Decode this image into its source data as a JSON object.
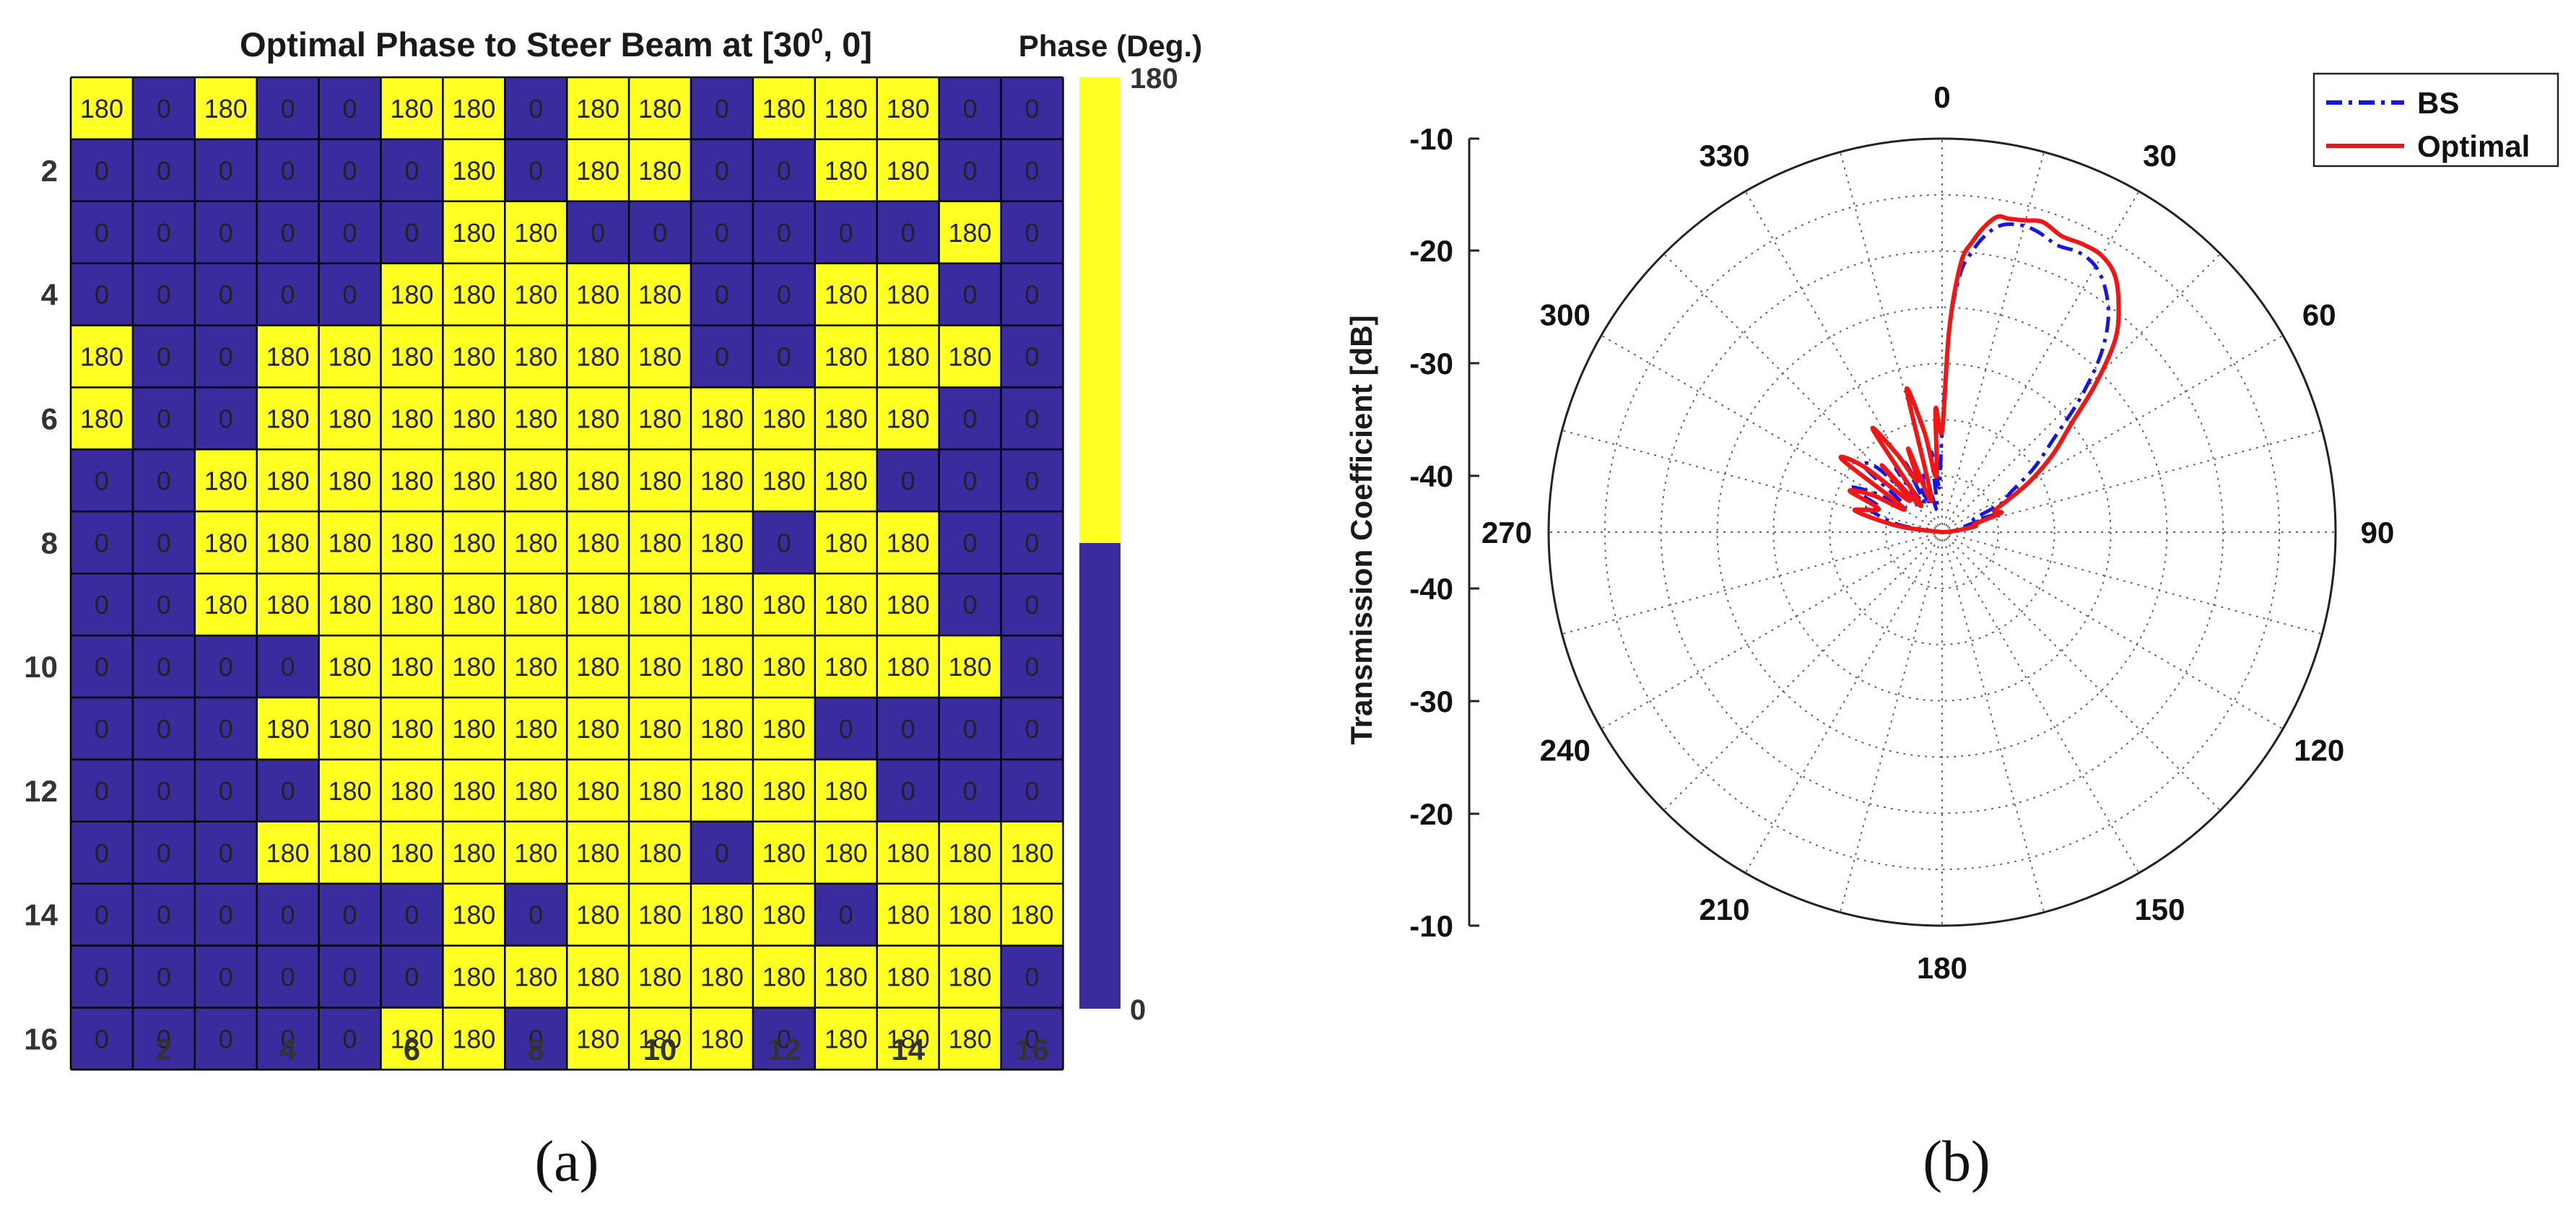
{
  "chart_data": [
    {
      "type": "heatmap",
      "title_prefix": "Optimal Phase to Steer Beam at [30",
      "title_sup": "0",
      "title_suffix": ", 0]",
      "colorbar_title": "Phase (Deg.)",
      "colorbar_ticks": [
        "180",
        "0"
      ],
      "x_ticks": [
        "2",
        "4",
        "6",
        "8",
        "10",
        "12",
        "14",
        "16"
      ],
      "y_ticks": [
        "2",
        "4",
        "6",
        "8",
        "10",
        "12",
        "14",
        "16"
      ],
      "colors": {
        "low": "#3a2b9e",
        "high": "#ffff22"
      },
      "caption": "(a)",
      "matrix": [
        [
          180,
          0,
          180,
          0,
          0,
          180,
          180,
          0,
          180,
          180,
          0,
          180,
          180,
          180,
          0,
          0
        ],
        [
          0,
          0,
          0,
          0,
          0,
          0,
          180,
          0,
          180,
          180,
          0,
          0,
          180,
          180,
          0,
          0
        ],
        [
          0,
          0,
          0,
          0,
          0,
          0,
          180,
          180,
          0,
          0,
          0,
          0,
          0,
          0,
          180,
          0
        ],
        [
          0,
          0,
          0,
          0,
          0,
          180,
          180,
          180,
          180,
          180,
          0,
          0,
          180,
          180,
          0,
          0
        ],
        [
          180,
          0,
          0,
          180,
          180,
          180,
          180,
          180,
          180,
          180,
          0,
          0,
          180,
          180,
          180,
          0
        ],
        [
          180,
          0,
          0,
          180,
          180,
          180,
          180,
          180,
          180,
          180,
          180,
          180,
          180,
          180,
          0,
          0
        ],
        [
          0,
          0,
          180,
          180,
          180,
          180,
          180,
          180,
          180,
          180,
          180,
          180,
          180,
          0,
          0,
          0
        ],
        [
          0,
          0,
          180,
          180,
          180,
          180,
          180,
          180,
          180,
          180,
          180,
          0,
          180,
          180,
          0,
          0
        ],
        [
          0,
          0,
          180,
          180,
          180,
          180,
          180,
          180,
          180,
          180,
          180,
          180,
          180,
          180,
          0,
          0
        ],
        [
          0,
          0,
          0,
          0,
          180,
          180,
          180,
          180,
          180,
          180,
          180,
          180,
          180,
          180,
          180,
          0
        ],
        [
          0,
          0,
          0,
          180,
          180,
          180,
          180,
          180,
          180,
          180,
          180,
          180,
          0,
          0,
          0,
          0
        ],
        [
          0,
          0,
          0,
          0,
          180,
          180,
          180,
          180,
          180,
          180,
          180,
          180,
          180,
          0,
          0,
          0
        ],
        [
          0,
          0,
          0,
          180,
          180,
          180,
          180,
          180,
          180,
          180,
          0,
          180,
          180,
          180,
          180,
          180
        ],
        [
          0,
          0,
          0,
          0,
          0,
          0,
          180,
          0,
          180,
          180,
          180,
          180,
          0,
          180,
          180,
          180
        ],
        [
          0,
          0,
          0,
          0,
          0,
          0,
          180,
          180,
          180,
          180,
          180,
          180,
          180,
          180,
          180,
          0
        ],
        [
          0,
          0,
          0,
          0,
          0,
          180,
          180,
          0,
          180,
          180,
          180,
          0,
          180,
          180,
          180,
          0
        ]
      ]
    },
    {
      "type": "polar",
      "ylabel": "Transmission Coefficient [dB]",
      "r_ticks": [
        "-10",
        "-20",
        "-30",
        "-40",
        "-40",
        "-30",
        "-20",
        "-10"
      ],
      "angle_labels": [
        "0",
        "30",
        "60",
        "90",
        "120",
        "150",
        "180",
        "210",
        "240",
        "270",
        "300",
        "330"
      ],
      "r_range_db": [
        -45,
        -10
      ],
      "caption": "(b)",
      "series": [
        {
          "name": "BS",
          "color": "#1515e6",
          "style": "dash-dot",
          "angles_deg": [
            -90,
            -80,
            -72,
            -68,
            -64,
            -60,
            -55,
            -50,
            -45,
            -40,
            -36,
            -32,
            -28,
            -24,
            -20,
            -16,
            -12,
            -8,
            -6,
            -4,
            -2,
            0,
            2,
            4,
            6,
            8,
            10,
            12,
            15,
            18,
            22,
            26,
            30,
            34,
            38,
            42,
            46,
            50,
            55,
            60,
            64,
            68,
            72,
            76,
            80,
            85,
            90
          ],
          "values_db": [
            -45,
            -41,
            -38,
            -39,
            -36,
            -38,
            -41,
            -36,
            -37,
            -42,
            -38,
            -42,
            -38,
            -42,
            -40,
            -40,
            -43,
            -38,
            -39,
            -41,
            -40,
            -36,
            -27,
            -22,
            -20,
            -18.5,
            -17.5,
            -17,
            -16.8,
            -17,
            -17.5,
            -17.3,
            -17.7,
            -19,
            -21,
            -24,
            -28,
            -32,
            -35,
            -38,
            -39,
            -42,
            -40,
            -43,
            -42,
            -44,
            -45
          ]
        },
        {
          "name": "Optimal",
          "color": "#f01616",
          "style": "solid",
          "angles_deg": [
            -90,
            -82,
            -76,
            -70,
            -66,
            -62,
            -58,
            -54,
            -50,
            -46,
            -42,
            -38,
            -34,
            -30,
            -26,
            -22,
            -18,
            -14,
            -10,
            -6,
            -3,
            0,
            2,
            4,
            6,
            8,
            10,
            12,
            15,
            18,
            22,
            26,
            30,
            34,
            38,
            42,
            46,
            50,
            55,
            60,
            64,
            68,
            72,
            76,
            80,
            85,
            90
          ],
          "values_db": [
            -45,
            -41,
            -37,
            -39,
            -36,
            -38,
            -41,
            -34,
            -36,
            -41,
            -37,
            -42,
            -34,
            -37,
            -40,
            -37,
            -42,
            -32,
            -36,
            -40,
            -34,
            -36,
            -27,
            -21,
            -19,
            -17.5,
            -16.5,
            -16.5,
            -16.3,
            -16,
            -16.6,
            -16.5,
            -16.6,
            -17.5,
            -19.5,
            -22,
            -26,
            -30,
            -33,
            -36,
            -38.5,
            -40,
            -39.5,
            -42,
            -42,
            -44,
            -45
          ]
        }
      ]
    }
  ]
}
